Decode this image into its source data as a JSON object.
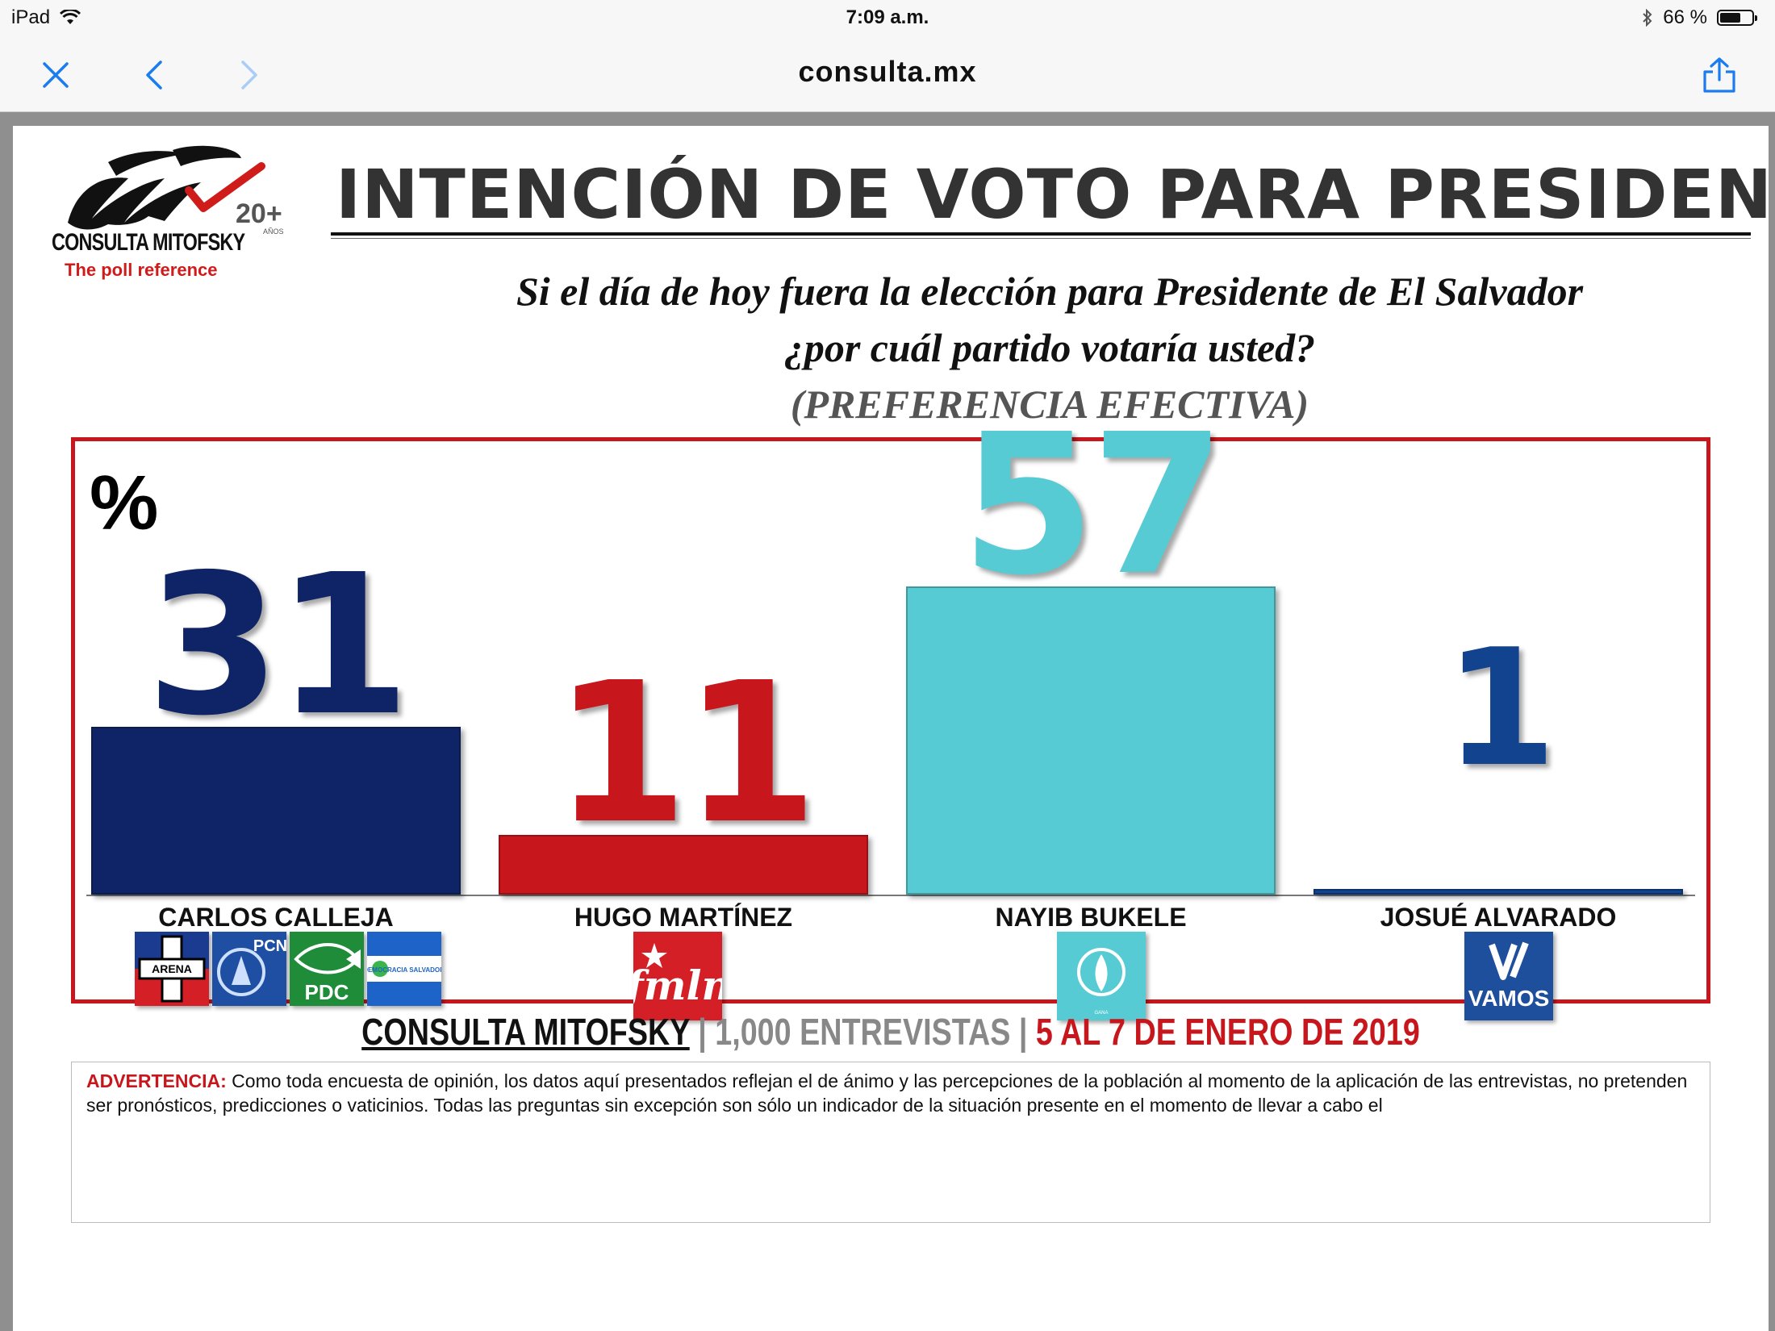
{
  "status_bar": {
    "device": "iPad",
    "time": "7:09 a.m.",
    "battery": "66 %"
  },
  "browser": {
    "url": "consulta.mx"
  },
  "logo": {
    "badge": "20+",
    "badge_sub": "AÑOS",
    "name": "CONSULTA MITOFSKY",
    "tagline": "The poll reference"
  },
  "header": {
    "title": "INTENCIÓN DE VOTO PARA PRESIDENTE",
    "question_line1": "Si el día de hoy fuera la elección para Presidente de El Salvador",
    "question_line2": "¿por cuál partido votaría usted?",
    "question_line3": "(PREFERENCIA EFECTIVA)"
  },
  "chart_data": {
    "type": "bar",
    "ylabel": "%",
    "categories": [
      "CARLOS CALLEJA",
      "HUGO MARTÍNEZ",
      "NAYIB BUKELE",
      "JOSUÉ ALVARADO"
    ],
    "values": [
      31,
      11,
      57,
      1
    ],
    "labels": [
      "31",
      "11",
      "57",
      "1"
    ],
    "colors": [
      "#0e2466",
      "#c8161d",
      "#56cbd3",
      "#12438f"
    ],
    "ylim": [
      0,
      60
    ],
    "grid": false,
    "legend": "none"
  },
  "parties": {
    "calleja": [
      "ARENA",
      "PCN",
      "PDC",
      "DEMOCRACIA SALVADOREÑA"
    ],
    "martinez": [
      "fmln"
    ],
    "bukele": [
      "GANA"
    ],
    "alvarado": [
      "VAMOS"
    ]
  },
  "footer": {
    "org": "CONSULTA MITOFSKY",
    "sep": " | ",
    "interviews": "1,000 ENTREVISTAS",
    "date": "5 AL 7 DE ENERO DE 2019"
  },
  "disclaimer": {
    "label": "ADVERTENCIA:",
    "text": "Como toda encuesta de opinión, los datos aquí presentados reflejan el  de ánimo y las percepciones de la población al momento de la aplicación de las entrevistas, no pretenden ser pronósticos, predicciones o vaticinios. Todas las preguntas sin excepción son sólo un indicador de la situación presente en el momento de llevar a cabo el"
  }
}
